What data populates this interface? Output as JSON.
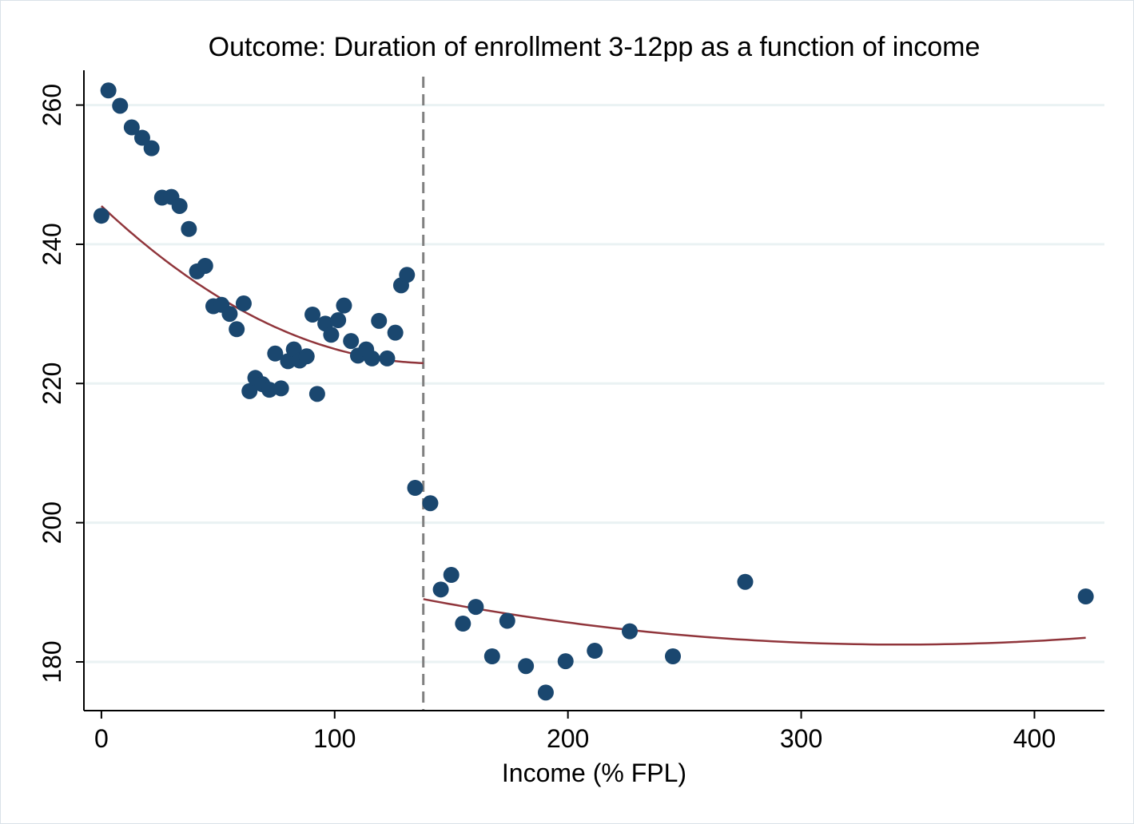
{
  "chart_data": {
    "type": "scatter",
    "title": "Outcome: Duration of enrollment 3-12pp as a function of income",
    "xlabel": "Income (% FPL)",
    "ylabel": "",
    "xlim": [
      -7.5,
      430
    ],
    "ylim": [
      173,
      265
    ],
    "x_ticks": [
      0,
      100,
      200,
      300,
      400
    ],
    "y_ticks": [
      180,
      200,
      220,
      240,
      260
    ],
    "grid": "horizontal",
    "cutoff_x": 138,
    "colors": {
      "points": "#1a476f",
      "fit": "#90353b",
      "grid": "#eaf2f3",
      "cutoff": "#808080"
    },
    "points": [
      {
        "x": 0,
        "y": 244.1
      },
      {
        "x": 3,
        "y": 262.1
      },
      {
        "x": 8,
        "y": 259.9
      },
      {
        "x": 13,
        "y": 256.8
      },
      {
        "x": 17.5,
        "y": 255.3
      },
      {
        "x": 21.5,
        "y": 253.8
      },
      {
        "x": 26,
        "y": 246.7
      },
      {
        "x": 30,
        "y": 246.8
      },
      {
        "x": 33.5,
        "y": 245.5
      },
      {
        "x": 37.5,
        "y": 242.2
      },
      {
        "x": 41,
        "y": 236.1
      },
      {
        "x": 44.5,
        "y": 236.9
      },
      {
        "x": 48,
        "y": 231.1
      },
      {
        "x": 51.5,
        "y": 231.3
      },
      {
        "x": 55,
        "y": 230.0
      },
      {
        "x": 58,
        "y": 227.8
      },
      {
        "x": 61,
        "y": 231.5
      },
      {
        "x": 63.5,
        "y": 218.9
      },
      {
        "x": 66,
        "y": 220.8
      },
      {
        "x": 69,
        "y": 219.9
      },
      {
        "x": 72,
        "y": 219.1
      },
      {
        "x": 74.5,
        "y": 224.3
      },
      {
        "x": 77,
        "y": 219.3
      },
      {
        "x": 80,
        "y": 223.2
      },
      {
        "x": 82.5,
        "y": 224.9
      },
      {
        "x": 85,
        "y": 223.3
      },
      {
        "x": 88,
        "y": 223.9
      },
      {
        "x": 90.5,
        "y": 229.9
      },
      {
        "x": 92.5,
        "y": 218.5
      },
      {
        "x": 96,
        "y": 228.6
      },
      {
        "x": 98.5,
        "y": 227.0
      },
      {
        "x": 101.5,
        "y": 229.1
      },
      {
        "x": 104,
        "y": 231.2
      },
      {
        "x": 107,
        "y": 226.1
      },
      {
        "x": 110,
        "y": 224.0
      },
      {
        "x": 113.5,
        "y": 224.9
      },
      {
        "x": 116,
        "y": 223.6
      },
      {
        "x": 119,
        "y": 229.0
      },
      {
        "x": 122.5,
        "y": 223.6
      },
      {
        "x": 126,
        "y": 227.3
      },
      {
        "x": 128.5,
        "y": 234.1
      },
      {
        "x": 131,
        "y": 235.6
      },
      {
        "x": 134.5,
        "y": 205.0
      },
      {
        "x": 141,
        "y": 202.8
      },
      {
        "x": 145.5,
        "y": 190.4
      },
      {
        "x": 150,
        "y": 192.5
      },
      {
        "x": 155,
        "y": 185.5
      },
      {
        "x": 160.5,
        "y": 187.9
      },
      {
        "x": 167.5,
        "y": 180.8
      },
      {
        "x": 174,
        "y": 185.9
      },
      {
        "x": 182,
        "y": 179.4
      },
      {
        "x": 190.5,
        "y": 175.6
      },
      {
        "x": 199,
        "y": 180.1
      },
      {
        "x": 211.5,
        "y": 181.6
      },
      {
        "x": 226.5,
        "y": 184.4
      },
      {
        "x": 245,
        "y": 180.8
      },
      {
        "x": 276,
        "y": 191.5
      },
      {
        "x": 422,
        "y": 189.4
      }
    ],
    "fits": [
      {
        "from": 0,
        "to": 138,
        "a": 245.5,
        "b": -0.3154,
        "c": 0.0011
      },
      {
        "from": 138,
        "to": 422,
        "a": 200.81,
        "b": -0.10693,
        "c": 0.000156
      }
    ]
  }
}
